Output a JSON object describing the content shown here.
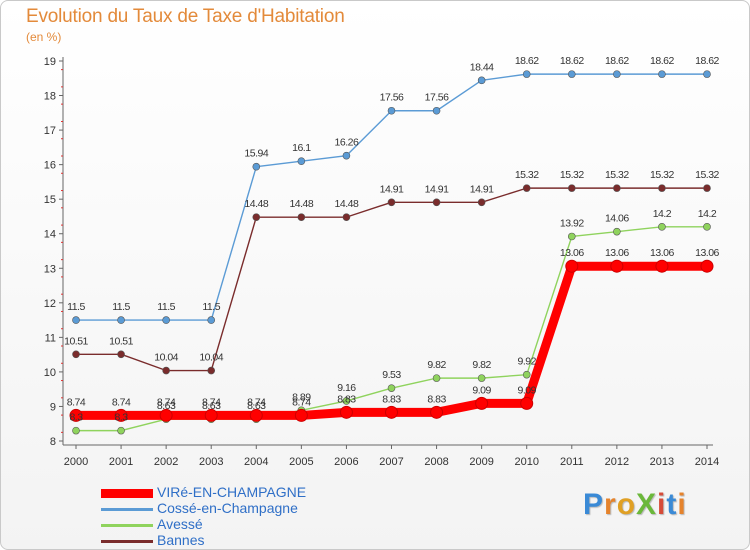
{
  "title": "Evolution du Taux de Taxe d'Habitation",
  "subtitle": "(en %)",
  "brand": "ProXiti",
  "brand_colors": [
    "#3a8ad6",
    "#e5832c",
    "#e0a024",
    "#6bb83a",
    "#d64b38",
    "#3a8ad6",
    "#e5832c"
  ],
  "chart_data": {
    "type": "line",
    "title": "Evolution du Taux de Taxe d'Habitation",
    "ylabel": "(en %)",
    "x": [
      "2000",
      "2001",
      "2002",
      "2003",
      "2004",
      "2005",
      "2006",
      "2007",
      "2008",
      "2009",
      "2010",
      "2011",
      "2012",
      "2013",
      "2014"
    ],
    "ylim": [
      8,
      19
    ],
    "yticks": [
      8,
      9,
      10,
      11,
      12,
      13,
      14,
      15,
      16,
      17,
      18,
      19
    ],
    "grid": false,
    "legend_position": "bottom-left",
    "series": [
      {
        "name": "VIRé-EN-CHAMPAGNE",
        "color": "#ff0000",
        "values": [
          8.74,
          8.74,
          8.74,
          8.74,
          8.74,
          8.74,
          8.83,
          8.83,
          8.83,
          9.09,
          9.09,
          13.06,
          13.06,
          13.06,
          13.06
        ],
        "labels": [
          "8.74",
          "8.74",
          "8.74",
          "8.74",
          "8.74",
          "8.74",
          "8.83",
          "8.83",
          "8.83",
          "9.09",
          "9.09",
          "13.06",
          "13.06",
          "13.06",
          "13.06"
        ]
      },
      {
        "name": "Cossé-en-Champagne",
        "color": "#5b9bd5",
        "values": [
          11.5,
          11.5,
          11.5,
          11.5,
          15.94,
          16.1,
          16.26,
          17.56,
          17.56,
          18.44,
          18.62,
          18.62,
          18.62,
          18.62,
          18.62
        ],
        "labels": [
          "11.5",
          "11.5",
          "11.5",
          "11.5",
          "15.94",
          "16.1",
          "16.26",
          "17.56",
          "17.56",
          "18.44",
          "18.62",
          "18.62",
          "18.62",
          "18.62",
          "18.62"
        ]
      },
      {
        "name": "Avessé",
        "color": "#8fd35d",
        "values": [
          8.3,
          8.3,
          8.63,
          8.63,
          8.63,
          8.89,
          9.16,
          9.53,
          9.82,
          9.82,
          9.92,
          13.92,
          14.06,
          14.2,
          14.2
        ],
        "labels": [
          "8.3",
          "8.3",
          "8.63",
          "8.63",
          "8.63",
          "8.89",
          "9.16",
          "9.53",
          "9.82",
          "9.82",
          "9.92",
          "13.92",
          "14.06",
          "14.2",
          "14.2"
        ]
      },
      {
        "name": "Bannes",
        "color": "#7a2c2c",
        "values": [
          10.51,
          10.51,
          10.04,
          10.04,
          14.48,
          14.48,
          14.48,
          14.91,
          14.91,
          14.91,
          15.32,
          15.32,
          15.32,
          15.32,
          15.32
        ],
        "labels": [
          "10.51",
          "10.51",
          "10.04",
          "10.04",
          "14.48",
          "14.48",
          "14.48",
          "14.91",
          "14.91",
          "14.91",
          "15.32",
          "15.32",
          "15.32",
          "15.32",
          "15.32"
        ]
      }
    ]
  }
}
